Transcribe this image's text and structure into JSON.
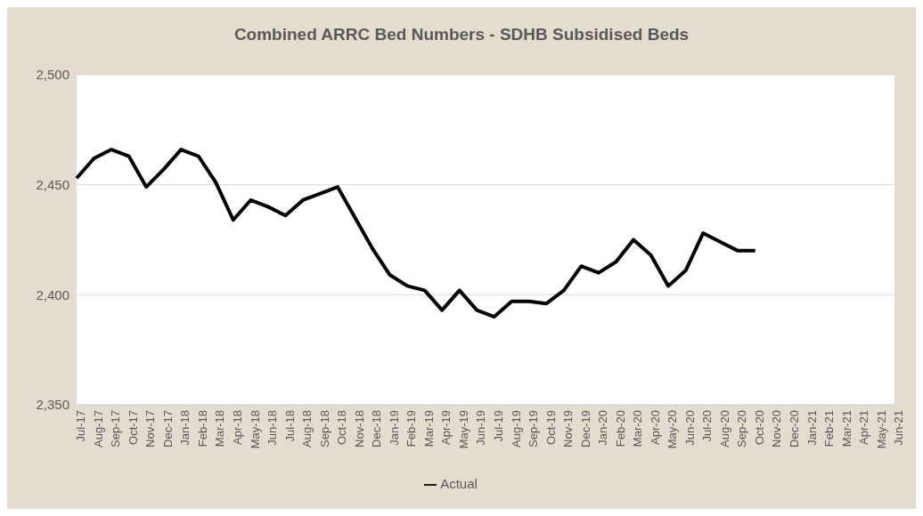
{
  "chart_data": {
    "type": "line",
    "title": "Combined ARRC Bed Numbers - SDHB Subsidised Beds",
    "categories": [
      "Jul-17",
      "Aug-17",
      "Sep-17",
      "Oct-17",
      "Nov-17",
      "Dec-17",
      "Jan-18",
      "Feb-18",
      "Mar-18",
      "Apr-18",
      "May-18",
      "Jun-18",
      "Jul-18",
      "Aug-18",
      "Sep-18",
      "Oct-18",
      "Nov-18",
      "Dec-18",
      "Jan-19",
      "Feb-19",
      "Mar-19",
      "Apr-19",
      "May-19",
      "Jun-19",
      "Jul-19",
      "Aug-19",
      "Sep-19",
      "Oct-19",
      "Nov-19",
      "Dec-19",
      "Jan-20",
      "Feb-20",
      "Mar-20",
      "Apr-20",
      "May-20",
      "Jun-20",
      "Jul-20",
      "Aug-20",
      "Sep-20",
      "Oct-20",
      "Nov-20",
      "Dec-20",
      "Jan-21",
      "Feb-21",
      "Mar-21",
      "Apr-21",
      "May-21",
      "Jun-21"
    ],
    "series": [
      {
        "name": "Actual",
        "color": "#000000",
        "values": [
          2453,
          2462,
          2466,
          2463,
          2449,
          2457,
          2466,
          2463,
          2451,
          2434,
          2443,
          2440,
          2436,
          2443,
          2446,
          2449,
          2435,
          2421,
          2409,
          2404,
          2402,
          2393,
          2402,
          2393,
          2390,
          2397,
          2397,
          2396,
          2402,
          2413,
          2410,
          2415,
          2425,
          2418,
          2404,
          2411,
          2428,
          2424,
          2420,
          2420,
          null,
          null,
          null,
          null,
          null,
          null,
          null,
          null
        ]
      }
    ],
    "ylim": [
      2350,
      2500
    ],
    "yticks": [
      {
        "value": 2350,
        "label": "2,350"
      },
      {
        "value": 2400,
        "label": "2,400"
      },
      {
        "value": 2450,
        "label": "2,450"
      },
      {
        "value": 2500,
        "label": "2,500"
      }
    ],
    "grid": "y",
    "legend": "bottom",
    "marker": "none",
    "line_style": "solid"
  }
}
